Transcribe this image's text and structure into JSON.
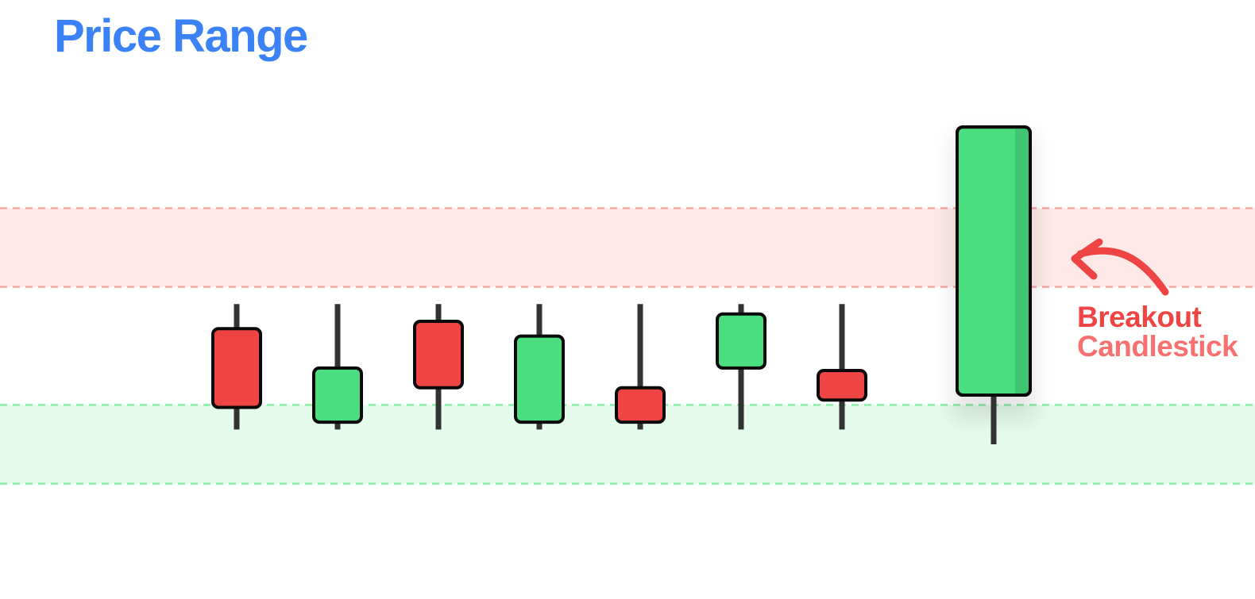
{
  "title": "Price Range",
  "annotation": {
    "line1": "Breakout",
    "line2": "Candlestick"
  },
  "colors": {
    "title": "#3b82f6",
    "bull": "#4ade80",
    "bull_shade": "#3fc46f",
    "bear": "#ef4444",
    "annotation_primary": "#ef4444",
    "annotation_secondary": "#f87171",
    "wick": "#333333",
    "outline": "#0a0a0a",
    "resistance_fill": "#fee8e8",
    "resistance_line": "#fca5a5",
    "support_fill": "#e5fbeb",
    "support_line": "#86efac"
  },
  "chart_data": {
    "type": "candlestick",
    "value_range": [
      0,
      100
    ],
    "bands": [
      {
        "kind": "resistance",
        "from": 57,
        "to": 73
      },
      {
        "kind": "support",
        "from": 17,
        "to": 33
      }
    ],
    "candles": [
      {
        "direction": "bear",
        "open": 48.5,
        "close": 32.5,
        "high": 53.5,
        "low": 28
      },
      {
        "direction": "bull",
        "open": 29.5,
        "close": 40.5,
        "high": 53.5,
        "low": 28
      },
      {
        "direction": "bear",
        "open": 50,
        "close": 36.5,
        "high": 53.5,
        "low": 28
      },
      {
        "direction": "bull",
        "open": 29.5,
        "close": 47,
        "high": 53.5,
        "low": 28
      },
      {
        "direction": "bear",
        "open": 36.5,
        "close": 29.5,
        "high": 53.5,
        "low": 28
      },
      {
        "direction": "bull",
        "open": 40.5,
        "close": 51.5,
        "high": 53.5,
        "low": 28
      },
      {
        "direction": "bear",
        "open": 40,
        "close": 34,
        "high": 53.5,
        "low": 28
      },
      {
        "direction": "bull",
        "open": 35,
        "close": 89.5,
        "high": 89.5,
        "low": 25,
        "label": "breakout"
      }
    ]
  }
}
